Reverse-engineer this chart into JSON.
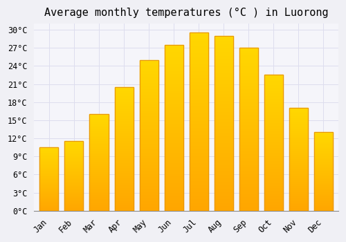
{
  "title": "Average monthly temperatures (°C ) in Luorong",
  "months": [
    "Jan",
    "Feb",
    "Mar",
    "Apr",
    "May",
    "Jun",
    "Jul",
    "Aug",
    "Sep",
    "Oct",
    "Nov",
    "Dec"
  ],
  "values": [
    10.5,
    11.5,
    16.0,
    20.5,
    25.0,
    27.5,
    29.5,
    29.0,
    27.0,
    22.5,
    17.0,
    13.0
  ],
  "bar_color_top": "#FFD700",
  "bar_color_bottom": "#FFA500",
  "bar_edge_color": "#E8960A",
  "background_color": "#F0F0F5",
  "plot_bg_color": "#F5F5FA",
  "grid_color": "#DDDDEE",
  "title_fontsize": 11,
  "tick_fontsize": 8.5,
  "ylim": [
    0,
    31
  ],
  "yticks": [
    0,
    3,
    6,
    9,
    12,
    15,
    18,
    21,
    24,
    27,
    30
  ]
}
